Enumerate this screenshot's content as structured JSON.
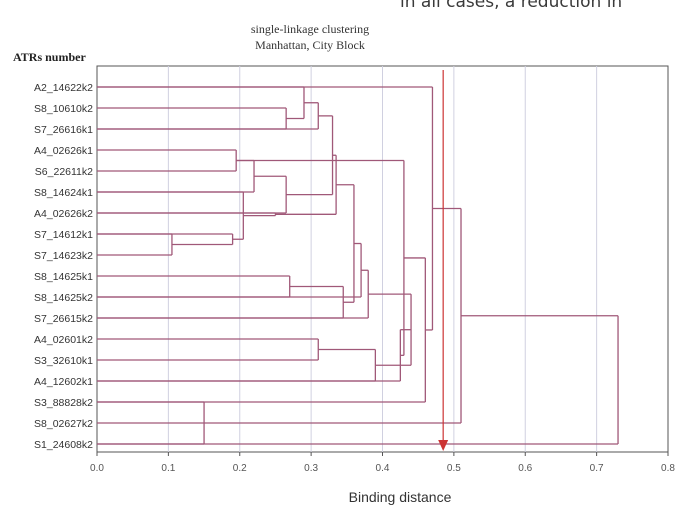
{
  "header_fragment": "in all cases, a reduction in",
  "chart_data": {
    "type": "dendrogram",
    "title": "single-linkage clustering",
    "subtitle": "Manhattan, City Block",
    "ylabel": "ATRs number",
    "xlabel": "Binding distance",
    "xlim": [
      0.0,
      0.8
    ],
    "xticks": [
      "0.0",
      "0.1",
      "0.2",
      "0.3",
      "0.4",
      "0.5",
      "0.6",
      "0.7",
      "0.8"
    ],
    "grid": true,
    "leaves": [
      "A2_14622k2",
      "S8_10610k2",
      "S7_26616k1",
      "A4_02626k1",
      "S6_22611k2",
      "S8_14624k1",
      "A4_02626k2",
      "S7_14612k1",
      "S7_14623k2",
      "S8_14625k1",
      "S8_14625k2",
      "S7_26615k2",
      "A4_02601k2",
      "S3_32610k1",
      "A4_12602k1",
      "S3_88828k2",
      "S8_02627k2",
      "S1_24608k2"
    ],
    "merges": [
      {
        "left": "S7_14612k1",
        "right": "S7_14623k2",
        "height": 0.105
      },
      {
        "left": "S3_88828k2",
        "right": "S1_24608k2",
        "height": 0.15
      },
      {
        "left": "A4_02626k1",
        "right": "S6_22611k2",
        "height": 0.195
      },
      {
        "left": "c1",
        "right": "S7_14612k1",
        "height": 0.19
      },
      {
        "left": "c4",
        "right": "S8_14624k1",
        "height": 0.205
      },
      {
        "left": "c3",
        "right": "S8_14624k1",
        "height": 0.22
      },
      {
        "left": "A4_02626k2",
        "right": "c5",
        "height": 0.25
      },
      {
        "left": "S8_10610k2",
        "right": "S7_26616k1",
        "height": 0.265
      },
      {
        "left": "S8_14625k1",
        "right": "S8_14625k2",
        "height": 0.27
      },
      {
        "left": "c6",
        "right": "A4_02626k2",
        "height": 0.265
      },
      {
        "left": "A2_14622k2",
        "right": "c8",
        "height": 0.29
      },
      {
        "left": "c11",
        "right": "S7_26616k1",
        "height": 0.31
      },
      {
        "left": "A4_02601k2",
        "right": "S3_32610k1",
        "height": 0.31
      },
      {
        "left": "c12",
        "right": "c10",
        "height": 0.33
      },
      {
        "left": "c14",
        "right": "c7",
        "height": 0.335
      },
      {
        "left": "c9",
        "right": "S7_26615k2",
        "height": 0.345
      },
      {
        "left": "c15",
        "right": "c16",
        "height": 0.36
      },
      {
        "left": "c13",
        "right": "A4_12602k1",
        "height": 0.39
      },
      {
        "left": "c17",
        "right": "S8_14625k2",
        "height": 0.37
      },
      {
        "left": "c19",
        "right": "S7_26615k2",
        "height": 0.38
      },
      {
        "left": "c20",
        "right": "c18",
        "height": 0.44
      },
      {
        "left": "c21",
        "right": "A4_12602k1",
        "height": 0.425
      },
      {
        "left": "c22",
        "right": "c3",
        "height": 0.43
      },
      {
        "left": "c23",
        "right": "S3_88828k2",
        "height": 0.46
      },
      {
        "left": "A2_14622k2",
        "right": "c24",
        "height": 0.47
      },
      {
        "left": "c25",
        "right": "S8_02627k2",
        "height": 0.51
      },
      {
        "left": "c26",
        "right": "S1_24608k2",
        "height": 0.73
      }
    ],
    "cut_height": 0.485,
    "line_color": "#a05878",
    "cut_color": "#cc3333",
    "grid_color": "#d0d0e0"
  }
}
